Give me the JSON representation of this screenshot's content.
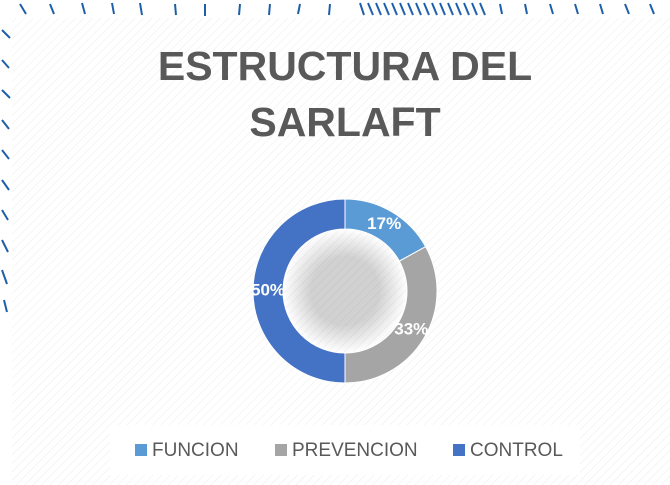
{
  "chart_data": {
    "type": "donut",
    "title": "ESTRUCTURA DEL SARLAFT",
    "categories": [
      "FUNCION",
      "PREVENCION",
      "CONTROL"
    ],
    "values": [
      17,
      33,
      50
    ],
    "value_labels": [
      "17%",
      "33%",
      "50%"
    ],
    "colors": [
      "#5b9bd5",
      "#a5a5a5",
      "#4472c4"
    ],
    "legend": "bottom"
  }
}
